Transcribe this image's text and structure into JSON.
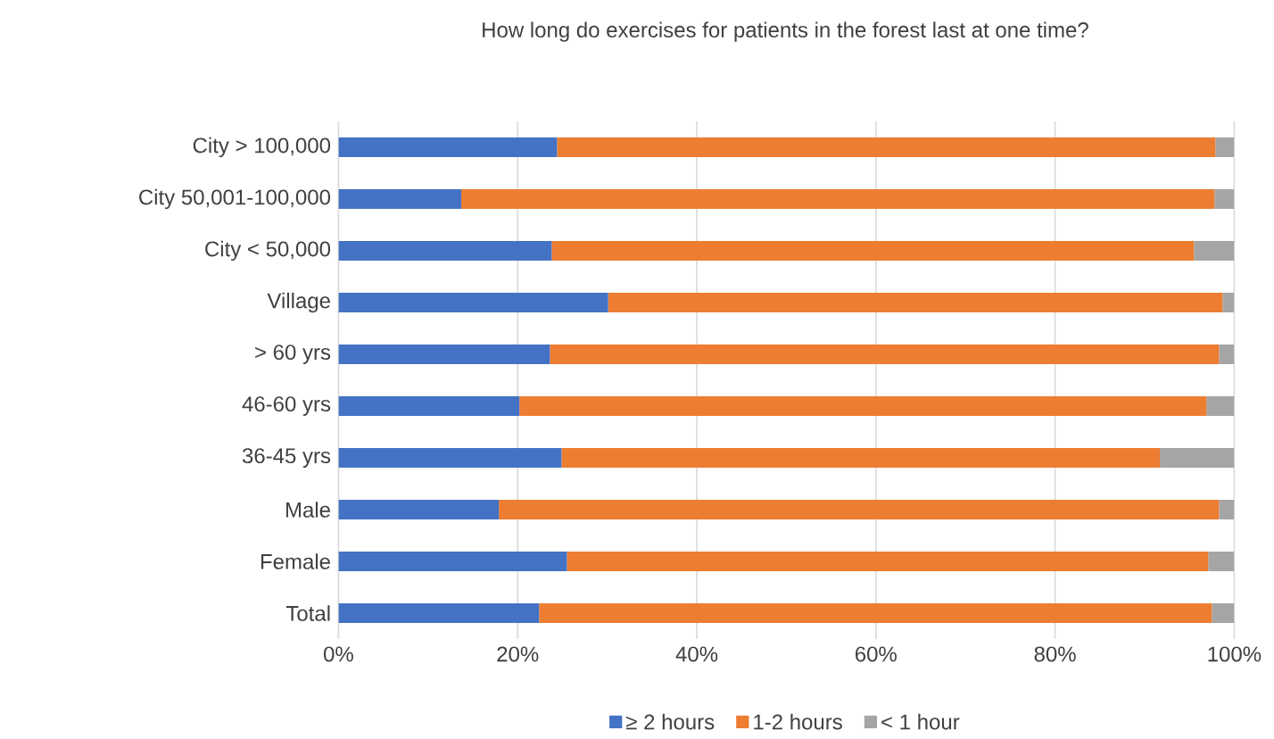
{
  "chart_data": {
    "type": "bar",
    "orientation": "horizontal",
    "stacked": true,
    "title": "How long do exercises for patients in the forest last at one time?",
    "categories": [
      "City > 100,000",
      "City 50,001-100,000",
      "City < 50,000",
      "Village",
      "> 60 yrs",
      "46-60 yrs",
      "36-45 yrs",
      "Male",
      "Female",
      "Total"
    ],
    "series": [
      {
        "name": "≥ 2 hours",
        "color": "#4472c4",
        "values": [
          24.4,
          13.7,
          23.8,
          30.1,
          23.6,
          20.2,
          24.9,
          17.9,
          25.5,
          22.4
        ]
      },
      {
        "name": "1-2 hours",
        "color": "#ed7d31",
        "values": [
          73.5,
          84.1,
          71.7,
          68.6,
          74.7,
          76.7,
          66.8,
          80.4,
          71.6,
          75.1
        ]
      },
      {
        "name": "< 1 hour",
        "color": "#a5a5a5",
        "values": [
          2.1,
          2.2,
          4.5,
          1.3,
          1.7,
          3.1,
          8.3,
          1.7,
          2.9,
          2.5
        ]
      }
    ],
    "xlim": [
      0,
      100
    ],
    "xticks": [
      {
        "value": 0,
        "label": "0%"
      },
      {
        "value": 20,
        "label": "20%"
      },
      {
        "value": 40,
        "label": "40%"
      },
      {
        "value": 60,
        "label": "60%"
      },
      {
        "value": 80,
        "label": "80%"
      },
      {
        "value": 100,
        "label": "100%"
      }
    ],
    "grid": "x",
    "legend": "bottom"
  }
}
